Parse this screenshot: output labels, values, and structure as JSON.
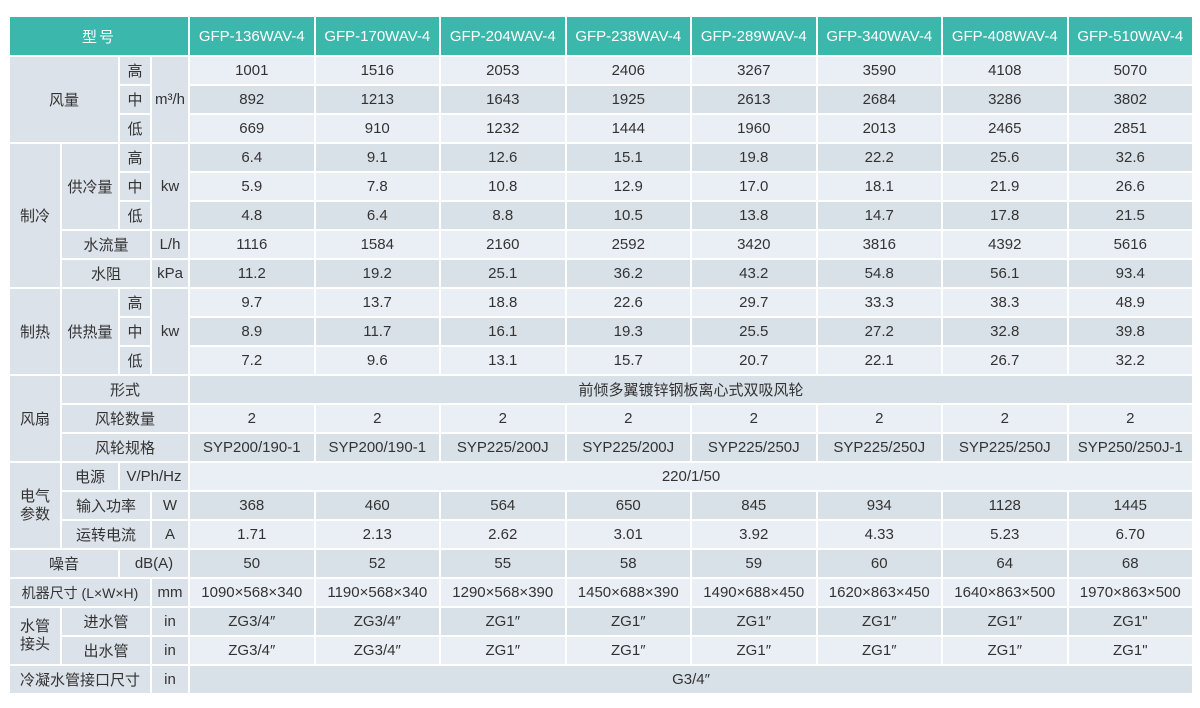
{
  "colors": {
    "header_bg": "#3bb7ab",
    "header_text": "#ffffff",
    "row_light": "#e9eff5",
    "row_dark": "#d9e1e8",
    "label_bg": "#dbe2e9",
    "text": "#333333"
  },
  "table": {
    "header": {
      "model_label": "型号",
      "models": [
        "GFP-136WAV-4",
        "GFP-170WAV-4",
        "GFP-204WAV-4",
        "GFP-238WAV-4",
        "GFP-289WAV-4",
        "GFP-340WAV-4",
        "GFP-408WAV-4",
        "GFP-510WAV-4"
      ]
    },
    "levels": {
      "high": "高",
      "mid": "中",
      "low": "低"
    },
    "airflow": {
      "section_label": "风量",
      "unit": "m³/h",
      "high": [
        "1001",
        "1516",
        "2053",
        "2406",
        "3267",
        "3590",
        "4108",
        "5070"
      ],
      "mid": [
        "892",
        "1213",
        "1643",
        "1925",
        "2613",
        "2684",
        "3286",
        "3802"
      ],
      "low": [
        "669",
        "910",
        "1232",
        "1444",
        "1960",
        "2013",
        "2465",
        "2851"
      ]
    },
    "cooling": {
      "section_label": "制冷",
      "capacity_label": "供冷量",
      "capacity_unit": "kw",
      "high": [
        "6.4",
        "9.1",
        "12.6",
        "15.1",
        "19.8",
        "22.2",
        "25.6",
        "32.6"
      ],
      "mid": [
        "5.9",
        "7.8",
        "10.8",
        "12.9",
        "17.0",
        "18.1",
        "21.9",
        "26.6"
      ],
      "low": [
        "4.8",
        "6.4",
        "8.8",
        "10.5",
        "13.8",
        "14.7",
        "17.8",
        "21.5"
      ],
      "water_flow_label": "水流量",
      "water_flow_unit": "L/h",
      "water_flow": [
        "1116",
        "1584",
        "2160",
        "2592",
        "3420",
        "3816",
        "4392",
        "5616"
      ],
      "water_resistance_label": "水阻",
      "water_resistance_unit": "kPa",
      "water_resistance": [
        "11.2",
        "19.2",
        "25.1",
        "36.2",
        "43.2",
        "54.8",
        "56.1",
        "93.4"
      ]
    },
    "heating": {
      "section_label": "制热",
      "capacity_label": "供热量",
      "capacity_unit": "kw",
      "high": [
        "9.7",
        "13.7",
        "18.8",
        "22.6",
        "29.7",
        "33.3",
        "38.3",
        "48.9"
      ],
      "mid": [
        "8.9",
        "11.7",
        "16.1",
        "19.3",
        "25.5",
        "27.2",
        "32.8",
        "39.8"
      ],
      "low": [
        "7.2",
        "9.6",
        "13.1",
        "15.7",
        "20.7",
        "22.1",
        "26.7",
        "32.2"
      ]
    },
    "fan": {
      "section_label": "风扇",
      "type_label": "形式",
      "type_value": "前倾多翼镀锌钢板离心式双吸风轮",
      "wheel_count_label": "风轮数量",
      "wheel_count": [
        "2",
        "2",
        "2",
        "2",
        "2",
        "2",
        "2",
        "2"
      ],
      "wheel_spec_label": "风轮规格",
      "wheel_spec": [
        "SYP200/190-1",
        "SYP200/190-1",
        "SYP225/200J",
        "SYP225/200J",
        "SYP225/250J",
        "SYP225/250J",
        "SYP225/250J",
        "SYP250/250J-1"
      ]
    },
    "electrical": {
      "section_label": "电气\n参数",
      "power_label": "电源",
      "power_unit": "V/Ph/Hz",
      "power_value": "220/1/50",
      "input_power_label": "输入功率",
      "input_power_unit": "W",
      "input_power": [
        "368",
        "460",
        "564",
        "650",
        "845",
        "934",
        "1128",
        "1445"
      ],
      "current_label": "运转电流",
      "current_unit": "A",
      "current": [
        "1.71",
        "2.13",
        "2.62",
        "3.01",
        "3.92",
        "4.33",
        "5.23",
        "6.70"
      ]
    },
    "noise": {
      "label": "噪音",
      "unit": "dB(A)",
      "values": [
        "50",
        "52",
        "55",
        "58",
        "59",
        "60",
        "64",
        "68"
      ]
    },
    "dimensions": {
      "label": "机器尺寸 (L×W×H)",
      "unit": "mm",
      "values": [
        "1090×568×340",
        "1190×568×340",
        "1290×568×390",
        "1450×688×390",
        "1490×688×450",
        "1620×863×450",
        "1640×863×500",
        "1970×863×500"
      ]
    },
    "pipes": {
      "section_label": "水管\n接头",
      "inlet_label": "进水管",
      "inlet_unit": "in",
      "inlet": [
        "ZG3/4″",
        "ZG3/4″",
        "ZG1″",
        "ZG1″",
        "ZG1″",
        "ZG1″",
        "ZG1″",
        "ZG1\""
      ],
      "outlet_label": "出水管",
      "outlet_unit": "in",
      "outlet": [
        "ZG3/4″",
        "ZG3/4″",
        "ZG1″",
        "ZG1″",
        "ZG1″",
        "ZG1″",
        "ZG1″",
        "ZG1\""
      ]
    },
    "condensate": {
      "label": "冷凝水管接口尺寸",
      "unit": "in",
      "value": "G3/4″"
    }
  }
}
